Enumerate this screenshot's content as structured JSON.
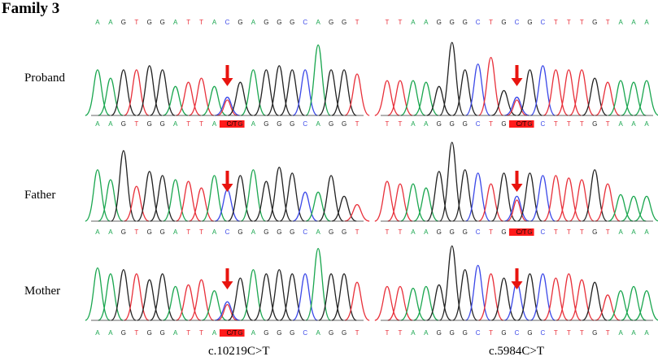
{
  "figure_title": "Family 3",
  "colors": {
    "A": "#1aa64f",
    "C": "#3b48e8",
    "G": "#222222",
    "T": "#e8303a",
    "het": "#ff1a1a",
    "arrow": "#e8140f"
  },
  "rows": [
    {
      "label": "Proband"
    },
    {
      "label": "Father"
    },
    {
      "label": "Mother"
    }
  ],
  "captions": [
    "c.10219C>T",
    "c.5984C>T"
  ],
  "panels": [
    {
      "id": "proband-left",
      "top_seq": "AAGTGGATTACGAGGGCAGGT",
      "bottom_seq": "AAGTGGATTA?GAGGGCAGGT",
      "het_label": "C/T",
      "arrow_index": 10
    },
    {
      "id": "proband-right",
      "top_seq": "TTAAGGGCTGCGCTTTGTAAA",
      "bottom_seq": "TTAAGGGCTG?GCTTTGTAAA",
      "het_label": "C/T",
      "arrow_index": 10
    },
    {
      "id": "father-left",
      "top_seq": "",
      "bottom_seq": "AAGTGGATTACGAGGGCAGGT",
      "het_label": "",
      "arrow_index": 10
    },
    {
      "id": "father-right",
      "top_seq": "",
      "bottom_seq": "TTAAGGGCTG?GCTTTGTAAA",
      "het_label": "C/T",
      "arrow_index": 10
    },
    {
      "id": "mother-left",
      "top_seq": "",
      "bottom_seq": "AAGTGGATTA?GAGGGCAGGT",
      "het_label": "C/T",
      "arrow_index": 10
    },
    {
      "id": "mother-right",
      "top_seq": "",
      "bottom_seq": "TTAAGGGCTGCGCTTTGTAAA",
      "het_label": "",
      "arrow_index": 10
    }
  ]
}
